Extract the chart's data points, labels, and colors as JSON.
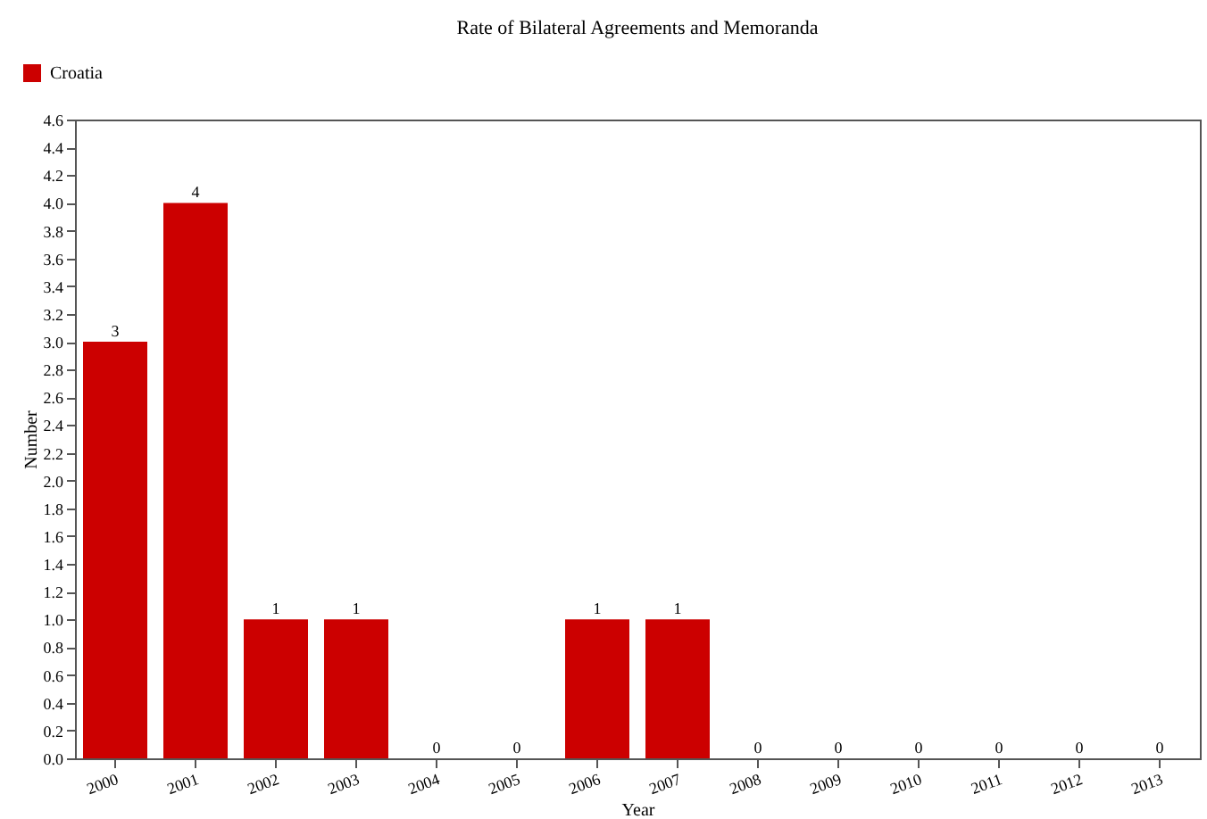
{
  "chart_data": {
    "type": "bar",
    "title": "Rate of Bilateral Agreements and Memoranda",
    "xlabel": "Year",
    "ylabel": "Number",
    "categories": [
      "2000",
      "2001",
      "2002",
      "2003",
      "2004",
      "2005",
      "2006",
      "2007",
      "2008",
      "2009",
      "2010",
      "2011",
      "2012",
      "2013"
    ],
    "series": [
      {
        "name": "Croatia",
        "color": "#cc0000",
        "values": [
          3,
          4,
          1,
          1,
          0,
          0,
          1,
          1,
          0,
          0,
          0,
          0,
          0,
          0
        ]
      }
    ],
    "ylim": [
      0,
      4.6
    ],
    "yticks": [
      {
        "value": 0,
        "label": "0.0"
      },
      0.2,
      0.4,
      0.6,
      0.8,
      {
        "value": 1,
        "label": "1.0"
      },
      1.2,
      1.4,
      1.6,
      1.8,
      {
        "value": 2,
        "label": "2.0"
      },
      2.2,
      2.4,
      2.6,
      2.8,
      {
        "value": 3,
        "label": "3.0"
      },
      3.2,
      3.4,
      3.6,
      3.8,
      {
        "value": 4,
        "label": "4.0"
      },
      4.2,
      4.4,
      4.6
    ],
    "data_labels": true,
    "legend": "top left",
    "grid": false
  }
}
